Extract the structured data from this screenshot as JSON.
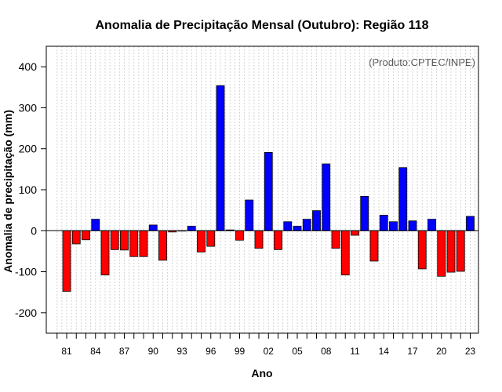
{
  "chart_data": {
    "type": "bar",
    "title": "Anomalia de Precipitação Mensal (Outubro): Região 118",
    "xlabel": "Ano",
    "ylabel": "Anomalia de precipitação (mm)",
    "credit": "(Produto:CPTEC/INPE)",
    "ylim": [
      -250,
      450
    ],
    "yticks": [
      -200,
      -100,
      0,
      100,
      200,
      300,
      400
    ],
    "years": [
      1981,
      1982,
      1983,
      1984,
      1985,
      1986,
      1987,
      1988,
      1989,
      1990,
      1991,
      1992,
      1993,
      1994,
      1995,
      1996,
      1997,
      1998,
      1999,
      2000,
      2001,
      2002,
      2003,
      2004,
      2005,
      2006,
      2007,
      2008,
      2009,
      2010,
      2011,
      2012,
      2013,
      2014,
      2015,
      2016,
      2017,
      2018,
      2019,
      2020,
      2021,
      2022,
      2023
    ],
    "values": [
      -148,
      -32,
      -22,
      28,
      -108,
      -46,
      -47,
      -63,
      -63,
      14,
      -72,
      -3,
      0,
      11,
      -52,
      -38,
      354,
      2,
      -23,
      75,
      -43,
      191,
      -46,
      22,
      11,
      28,
      49,
      163,
      -43,
      -108,
      -11,
      84,
      -74,
      38,
      22,
      154,
      24,
      -93,
      28,
      -111,
      -101,
      -99,
      35
    ],
    "xtick_years": [
      1981,
      1984,
      1987,
      1990,
      1993,
      1996,
      1999,
      2002,
      2005,
      2008,
      2011,
      2014,
      2017,
      2020,
      2023
    ],
    "xtick_labels": [
      "81",
      "84",
      "87",
      "90",
      "93",
      "96",
      "99",
      "02",
      "05",
      "08",
      "11",
      "14",
      "17",
      "20",
      "23"
    ],
    "colors": {
      "positive": "#0000ff",
      "negative": "#ff0000",
      "grid": "#d3d3d3",
      "axis": "#000000"
    }
  }
}
